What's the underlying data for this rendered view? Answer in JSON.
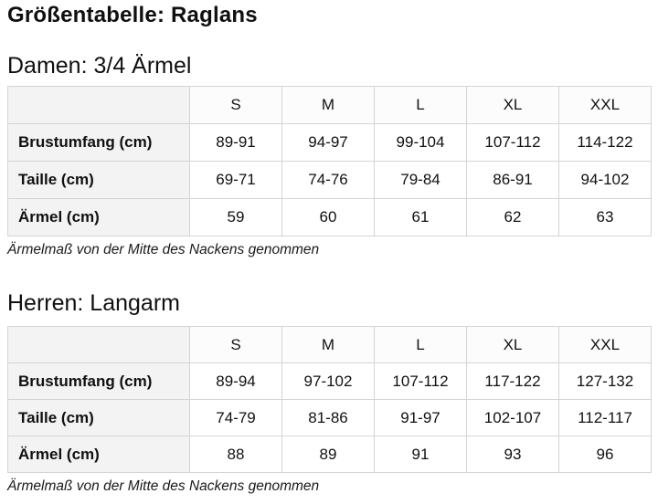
{
  "page": {
    "title": "Größentabelle: Raglans"
  },
  "tables": [
    {
      "heading": "Damen: 3/4 Ärmel",
      "columns": [
        "",
        "S",
        "M",
        "L",
        "XL",
        "XXL"
      ],
      "rows": [
        {
          "label": "Brustumfang (cm)",
          "values": [
            "89-91",
            "94-97",
            "99-104",
            "107-112",
            "114-122"
          ]
        },
        {
          "label": "Taille (cm)",
          "values": [
            "69-71",
            "74-76",
            "79-84",
            "86-91",
            "94-102"
          ]
        },
        {
          "label": "Ärmel (cm)",
          "values": [
            "59",
            "60",
            "61",
            "62",
            "63"
          ]
        }
      ],
      "note": "Ärmelmaß von der Mitte des Nackens genommen"
    },
    {
      "heading": "Herren: Langarm",
      "columns": [
        "",
        "S",
        "M",
        "L",
        "XL",
        "XXL"
      ],
      "rows": [
        {
          "label": "Brustumfang (cm)",
          "values": [
            "89-94",
            "97-102",
            "107-112",
            "117-122",
            "127-132"
          ]
        },
        {
          "label": "Taille (cm)",
          "values": [
            "74-79",
            "81-86",
            "91-97",
            "102-107",
            "112-117"
          ]
        },
        {
          "label": "Ärmel (cm)",
          "values": [
            "88",
            "89",
            "91",
            "93",
            "96"
          ]
        }
      ],
      "note": "Ärmelmaß von der Mitte des Nackens genommen"
    }
  ],
  "colors": {
    "text": "#0f1111",
    "label_column_bg": "#f3f3f3",
    "header_row_bg": "#fcfcfc",
    "table_border": "#d4d4d4",
    "page_bg": "#ffffff"
  }
}
